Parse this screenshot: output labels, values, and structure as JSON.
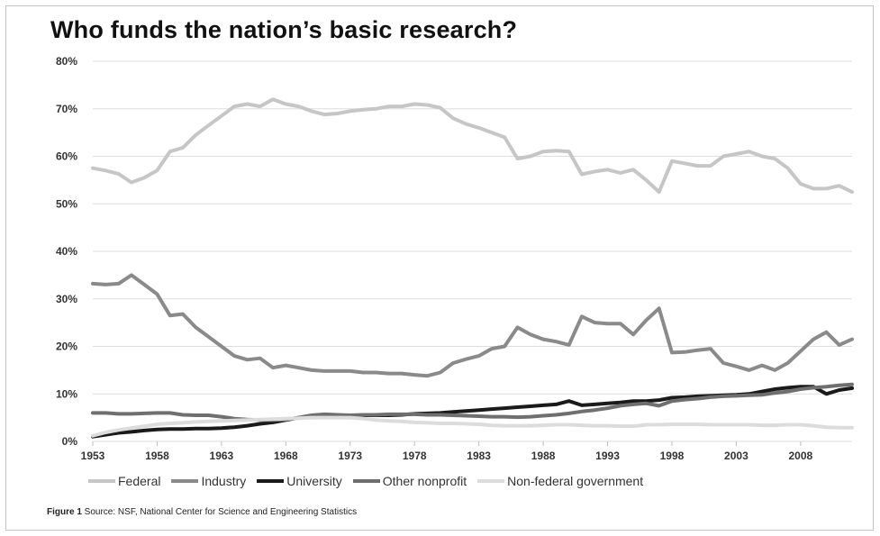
{
  "chart_data": {
    "type": "line",
    "title": "Who funds the nation’s basic research?",
    "xlabel": "",
    "ylabel": "",
    "x": [
      1953,
      1954,
      1955,
      1956,
      1957,
      1958,
      1959,
      1960,
      1961,
      1962,
      1963,
      1964,
      1965,
      1966,
      1967,
      1968,
      1969,
      1970,
      1971,
      1972,
      1973,
      1974,
      1975,
      1976,
      1977,
      1978,
      1979,
      1980,
      1981,
      1982,
      1983,
      1984,
      1985,
      1986,
      1987,
      1988,
      1989,
      1990,
      1991,
      1992,
      1993,
      1994,
      1995,
      1996,
      1997,
      1998,
      1999,
      2000,
      2001,
      2002,
      2003,
      2004,
      2005,
      2006,
      2007,
      2008,
      2009,
      2010,
      2011,
      2012
    ],
    "x_ticks": [
      "1953",
      "1958",
      "1963",
      "1968",
      "1973",
      "1978",
      "1983",
      "1988",
      "1993",
      "1998",
      "2003",
      "2008"
    ],
    "y_ticks": [
      "0%",
      "10%",
      "20%",
      "30%",
      "40%",
      "50%",
      "60%",
      "70%",
      "80%"
    ],
    "ylim": [
      0,
      80
    ],
    "y_unit": "%",
    "grid": "horizontal",
    "legend_position": "bottom",
    "series": [
      {
        "name": "Federal",
        "color": "#c6c6c6",
        "values": [
          57.5,
          57,
          56.3,
          54.5,
          55.5,
          57,
          61,
          61.8,
          64.5,
          66.5,
          68.5,
          70.5,
          71,
          70.5,
          72,
          71,
          70.5,
          69.5,
          68.8,
          69,
          69.5,
          69.8,
          70,
          70.5,
          70.5,
          71,
          70.8,
          70.2,
          68,
          66.8,
          66,
          65,
          64,
          59.5,
          60,
          61,
          61.2,
          61,
          56.2,
          56.8,
          57.2,
          56.5,
          57.2,
          55,
          52.5,
          59,
          58.5,
          58,
          58,
          60,
          60.5,
          61,
          60,
          59.5,
          57.5,
          54.2,
          53.2,
          53.2,
          53.8,
          52.5
        ]
      },
      {
        "name": "Industry",
        "color": "#8a8a8a",
        "values": [
          33.2,
          33,
          33.2,
          35,
          33,
          31,
          26.5,
          26.8,
          24,
          22,
          20,
          18,
          17.2,
          17.5,
          15.5,
          16,
          15.5,
          15,
          14.8,
          14.8,
          14.8,
          14.5,
          14.5,
          14.3,
          14.3,
          14,
          13.8,
          14.5,
          16.5,
          17.3,
          18,
          19.5,
          20,
          24,
          22.5,
          21.5,
          21,
          20.3,
          26.3,
          25,
          24.8,
          24.8,
          22.5,
          25.5,
          28,
          18.7,
          18.8,
          19.2,
          19.5,
          16.5,
          15.8,
          15,
          16,
          15,
          16.5,
          19,
          21.5,
          23,
          20.3,
          21.5
        ]
      },
      {
        "name": "University",
        "color": "#1a1a1a",
        "values": [
          1,
          1.4,
          1.8,
          2,
          2.3,
          2.5,
          2.6,
          2.6,
          2.7,
          2.7,
          2.8,
          3,
          3.3,
          3.7,
          4,
          4.5,
          5,
          5.2,
          5.4,
          5.5,
          5.5,
          5.5,
          5.5,
          5.5,
          5.6,
          5.8,
          5.9,
          6,
          6.2,
          6.4,
          6.6,
          6.8,
          7,
          7.2,
          7.4,
          7.6,
          7.8,
          8.5,
          7.6,
          7.8,
          8,
          8.2,
          8.5,
          8.5,
          8.7,
          9.2,
          9.3,
          9.5,
          9.6,
          9.7,
          9.8,
          10,
          10.5,
          11,
          11.3,
          11.5,
          11.5,
          10,
          10.8,
          11.2
        ]
      },
      {
        "name": "Other nonprofit",
        "color": "#6f6f6f",
        "values": [
          6,
          6,
          5.8,
          5.8,
          5.9,
          6,
          6,
          5.6,
          5.5,
          5.5,
          5.2,
          4.8,
          4.6,
          4.5,
          4.5,
          4.6,
          5,
          5.5,
          5.7,
          5.6,
          5.5,
          5.6,
          5.6,
          5.7,
          5.7,
          5.7,
          5.6,
          5.6,
          5.5,
          5.4,
          5.3,
          5.2,
          5.2,
          5.1,
          5.2,
          5.4,
          5.6,
          5.9,
          6.3,
          6.6,
          7,
          7.5,
          7.8,
          8,
          7.5,
          8.5,
          8.8,
          9,
          9.3,
          9.5,
          9.6,
          9.7,
          9.8,
          10.2,
          10.5,
          11,
          11.3,
          11.5,
          11.8,
          12
        ]
      },
      {
        "name": "Non-federal government",
        "color": "#dcdcdc",
        "values": [
          1.2,
          1.9,
          2.4,
          2.8,
          3.2,
          3.6,
          3.8,
          3.9,
          4.1,
          4.2,
          4.3,
          4.4,
          4.5,
          4.6,
          4.7,
          4.8,
          4.9,
          5,
          5,
          5,
          5,
          4.8,
          4.5,
          4.3,
          4.2,
          4,
          3.9,
          3.8,
          3.8,
          3.7,
          3.6,
          3.4,
          3.3,
          3.3,
          3.3,
          3.4,
          3.5,
          3.5,
          3.4,
          3.3,
          3.3,
          3.2,
          3.2,
          3.5,
          3.5,
          3.6,
          3.6,
          3.6,
          3.5,
          3.5,
          3.5,
          3.5,
          3.4,
          3.4,
          3.5,
          3.5,
          3.3,
          3,
          2.9,
          2.9
        ]
      }
    ]
  },
  "caption": {
    "label": "Figure 1",
    "text": " Source: NSF, National Center for Science and Engineering Statistics"
  }
}
